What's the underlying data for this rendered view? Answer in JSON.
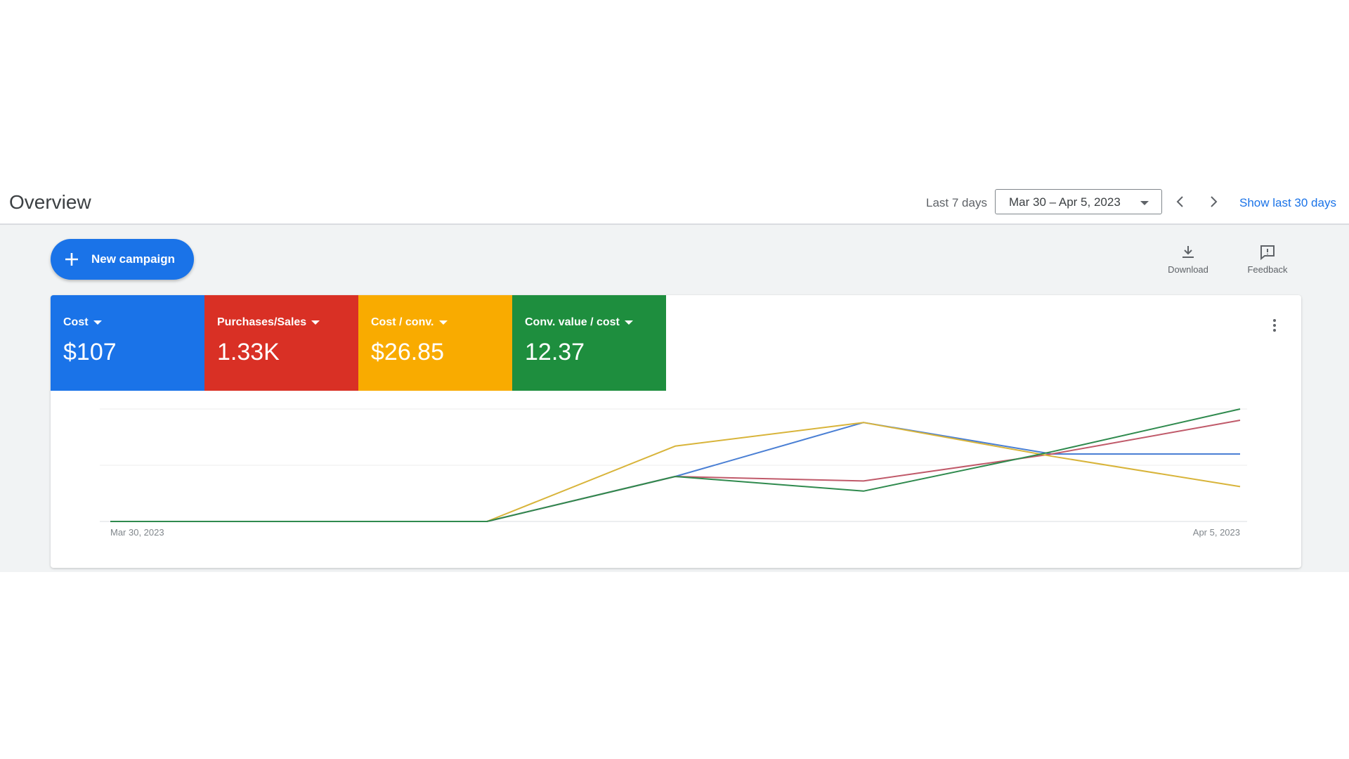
{
  "header": {
    "title": "Overview",
    "range_label": "Last 7 days",
    "date_range": "Mar 30 – Apr 5, 2023",
    "show_30_label": "Show last 30 days"
  },
  "toolbar": {
    "new_campaign_label": "New campaign",
    "download_label": "Download",
    "feedback_label": "Feedback"
  },
  "metrics": [
    {
      "label": "Cost",
      "value": "$107",
      "color": "#1a73e8"
    },
    {
      "label": "Purchases/Sales",
      "value": "1.33K",
      "color": "#d93025"
    },
    {
      "label": "Cost / conv.",
      "value": "$26.85",
      "color": "#f9ab00"
    },
    {
      "label": "Conv. value / cost",
      "value": "12.37",
      "color": "#1e8e3e"
    }
  ],
  "chart_data": {
    "type": "line",
    "x": [
      "Mar 30, 2023",
      "Mar 31, 2023",
      "Apr 1, 2023",
      "Apr 2, 2023",
      "Apr 3, 2023",
      "Apr 4, 2023",
      "Apr 5, 2023"
    ],
    "x_tick_labels": [
      "Mar 30, 2023",
      "Apr 5, 2023"
    ],
    "ylim": [
      0,
      1
    ],
    "grid": true,
    "series": [
      {
        "color": "#4a7fd4",
        "values": [
          0,
          0,
          0,
          0.4,
          0.88,
          0.6,
          0.6
        ]
      },
      {
        "color": "#c05a6a",
        "values": [
          0,
          0,
          0,
          0.4,
          0.36,
          0.6,
          0.9
        ]
      },
      {
        "color": "#d8b43a",
        "values": [
          0,
          0,
          0,
          0.67,
          0.88,
          0.58,
          0.31
        ]
      },
      {
        "color": "#2f8a4e",
        "values": [
          0,
          0,
          0,
          0.4,
          0.27,
          0.62,
          1.0
        ]
      }
    ]
  }
}
